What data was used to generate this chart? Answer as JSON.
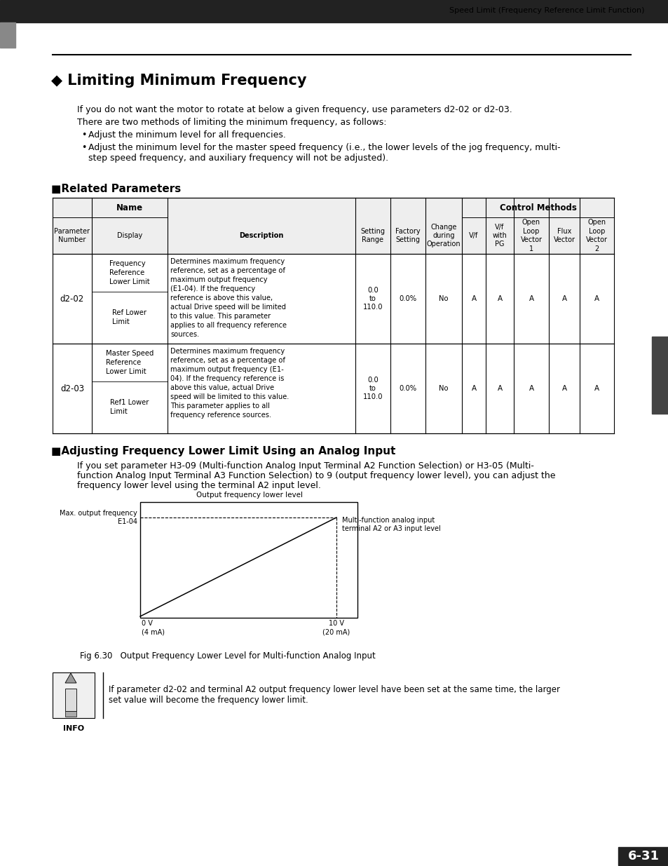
{
  "page_header_text": "Speed Limit (Frequency Reference Limit Function)",
  "header_bar_color": "#222222",
  "section_marker_color": "#666666",
  "title": "◆ Limiting Minimum Frequency",
  "body_text_1": "If you do not want the motor to rotate at below a given frequency, use parameters d2-02 or d2-03.",
  "body_text_2": "There are two methods of limiting the minimum frequency, as follows:",
  "bullet_1": "Adjust the minimum level for all frequencies.",
  "bullet_2": "Adjust the minimum level for the master speed frequency (i.e., the lower levels of the jog frequency, multi-",
  "bullet_2b": "step speed frequency, and auxiliary frequency will not be adjusted).",
  "section2_title": "Related Parameters",
  "section3_title": "Adjusting Frequency Lower Limit Using an Analog Input",
  "section3_text_1": "If you set parameter H3-09 (Multi-function Analog Input Terminal A2 Function Selection) or H3-05 (Multi-",
  "section3_text_2": "function Analog Input Terminal A3 Function Selection) to 9 (output frequency lower level), you can adjust the",
  "section3_text_3": "frequency lower level using the terminal A2 input level.",
  "fig_label": "Fig 6.30   Output Frequency Lower Level for Multi-function Analog Input",
  "info_text_1": "If parameter d2-02 and terminal A2 output frequency lower level have been set at the same time, the larger",
  "info_text_2": "set value will become the frequency lower limit.",
  "page_number": "6-31",
  "bg_color": "#ffffff",
  "text_color": "#000000",
  "table_border_color": "#000000",
  "table_header_bg": "#f0f0f0",
  "table_rows": [
    {
      "param": "d2-02",
      "name_top_1": "Frequency",
      "name_top_2": "Reference",
      "name_top_3": "Lower Limit",
      "name_bot_1": "Ref Lower",
      "name_bot_2": "Limit",
      "desc_1": "Determines maximum frequency",
      "desc_2": "reference, set as a percentage of",
      "desc_3": "maximum output frequency",
      "desc_4": "(E1-04). If the frequency",
      "desc_5": "reference is above this value,",
      "desc_6": "actual Drive speed will be limited",
      "desc_7": "to this value. This parameter",
      "desc_8": "applies to all frequency reference",
      "desc_9": "sources.",
      "setting_range": "0.0 to 110.0",
      "factory": "0.0%",
      "change": "No",
      "vf": "A",
      "vf_pg": "A",
      "open_loop_v1": "A",
      "flux": "A",
      "open_loop_v2": "A"
    },
    {
      "param": "d2-03",
      "name_top_1": "Master Speed",
      "name_top_2": "Reference",
      "name_top_3": "Lower Limit",
      "name_bot_1": "Ref1 Lower",
      "name_bot_2": "Limit",
      "desc_1": "Determines maximum frequency",
      "desc_2": "reference, set as a percentage of",
      "desc_3": "maximum output frequency (E1-",
      "desc_4": "04). If the frequency reference is",
      "desc_5": "above this value, actual Drive",
      "desc_6": "speed will be limited to this value.",
      "desc_7": "This parameter applies to all",
      "desc_8": "frequency reference sources.",
      "desc_9": "",
      "setting_range": "0.0 to 110.0",
      "factory": "0.0%",
      "change": "No",
      "vf": "A",
      "vf_pg": "A",
      "open_loop_v1": "A",
      "flux": "A",
      "open_loop_v2": "A"
    }
  ]
}
